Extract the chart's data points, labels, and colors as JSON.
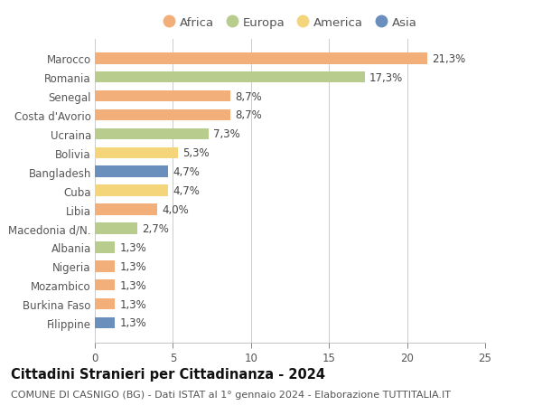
{
  "countries": [
    "Marocco",
    "Romania",
    "Senegal",
    "Costa d'Avorio",
    "Ucraina",
    "Bolivia",
    "Bangladesh",
    "Cuba",
    "Libia",
    "Macedonia d/N.",
    "Albania",
    "Nigeria",
    "Mozambico",
    "Burkina Faso",
    "Filippine"
  ],
  "values": [
    21.3,
    17.3,
    8.7,
    8.7,
    7.3,
    5.3,
    4.7,
    4.7,
    4.0,
    2.7,
    1.3,
    1.3,
    1.3,
    1.3,
    1.3
  ],
  "labels": [
    "21,3%",
    "17,3%",
    "8,7%",
    "8,7%",
    "7,3%",
    "5,3%",
    "4,7%",
    "4,7%",
    "4,0%",
    "2,7%",
    "1,3%",
    "1,3%",
    "1,3%",
    "1,3%",
    "1,3%"
  ],
  "continents": [
    "Africa",
    "Europa",
    "Africa",
    "Africa",
    "Europa",
    "America",
    "Asia",
    "America",
    "Africa",
    "Europa",
    "Europa",
    "Africa",
    "Africa",
    "Africa",
    "Asia"
  ],
  "colors": {
    "Africa": "#F2AF7A",
    "Europa": "#B8CC8E",
    "America": "#F5D57A",
    "Asia": "#6B8FBD"
  },
  "legend_order": [
    "Africa",
    "Europa",
    "America",
    "Asia"
  ],
  "title": "Cittadini Stranieri per Cittadinanza - 2024",
  "subtitle": "COMUNE DI CASNIGO (BG) - Dati ISTAT al 1° gennaio 2024 - Elaborazione TUTTITALIA.IT",
  "xlim": [
    0,
    25
  ],
  "xticks": [
    0,
    5,
    10,
    15,
    20,
    25
  ],
  "background_color": "#ffffff",
  "grid_color": "#cccccc",
  "bar_height": 0.6,
  "title_fontsize": 10.5,
  "subtitle_fontsize": 8,
  "tick_fontsize": 8.5,
  "label_fontsize": 8.5,
  "legend_fontsize": 9.5
}
